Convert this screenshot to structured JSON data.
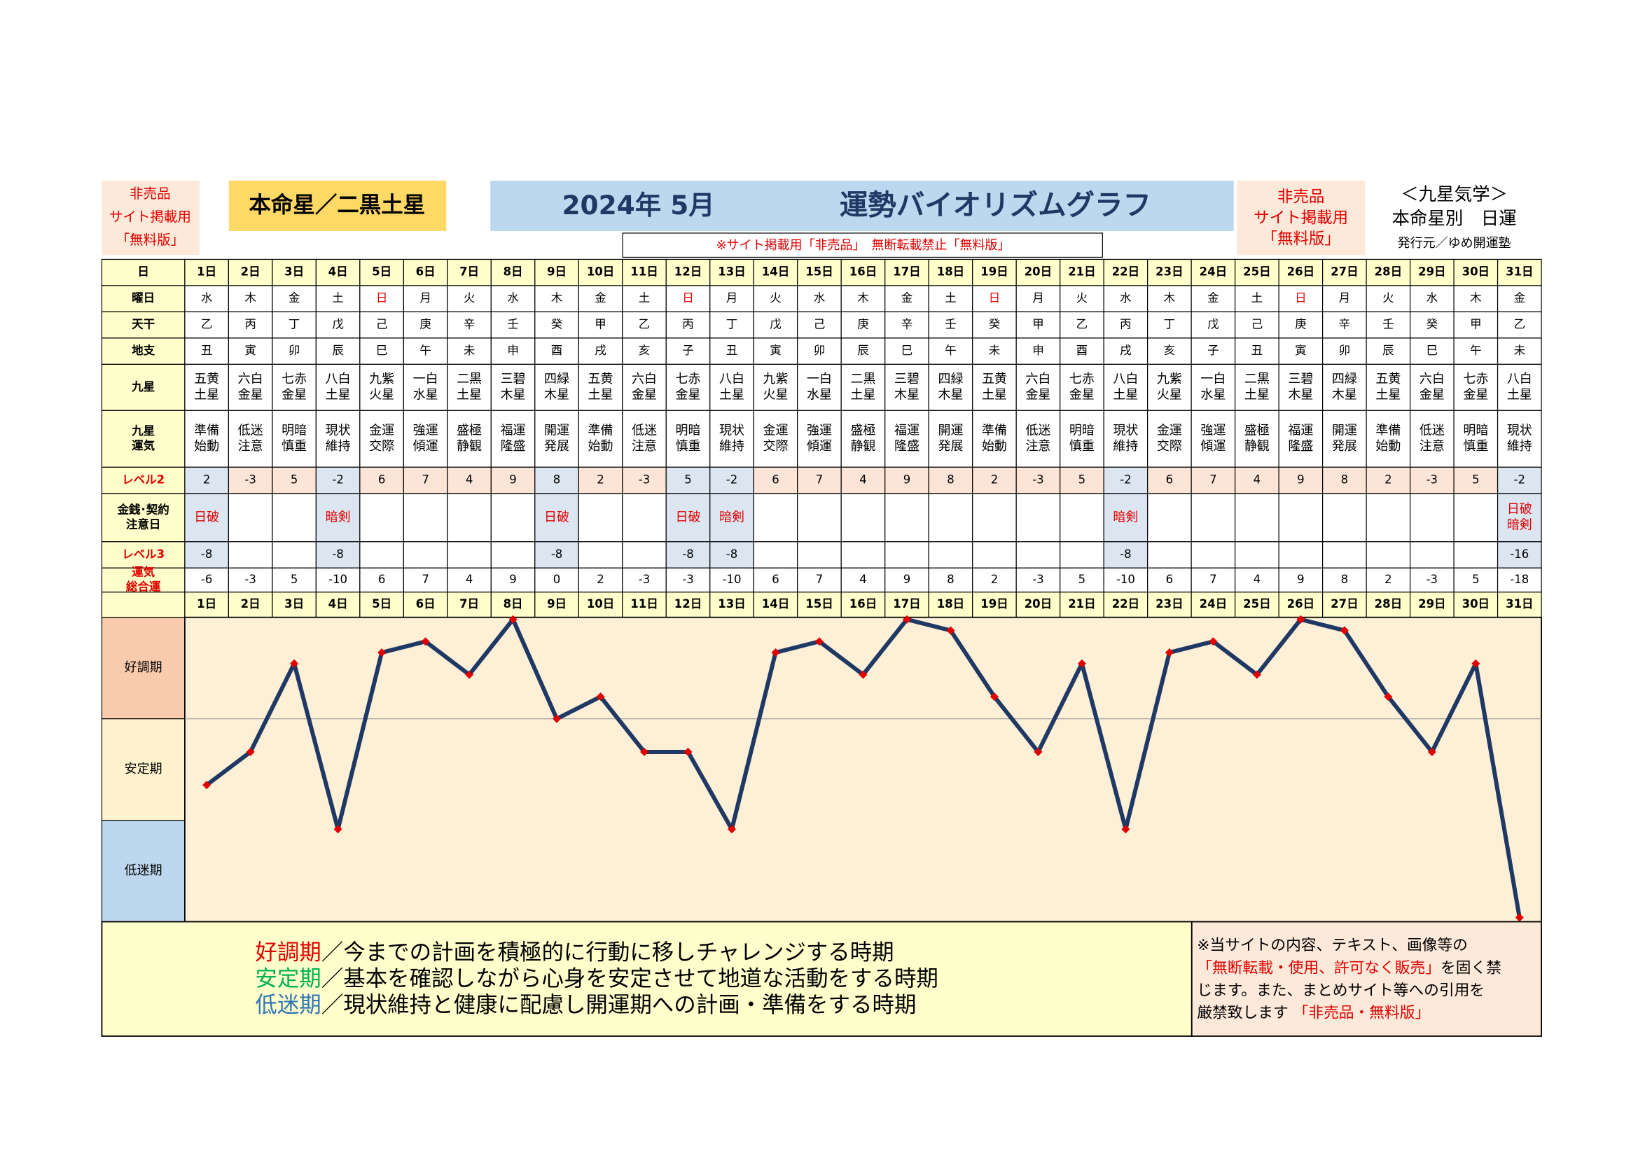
{
  "header": {
    "left_notice": [
      "非売品",
      "サイト掲載用",
      "「無料版」"
    ],
    "honmei": "本命星／二黒土星",
    "title_date": "2024年 5月",
    "title": "運勢バイオリズムグラフ",
    "right_notice": [
      "非売品",
      "サイト掲載用",
      "「無料版」"
    ],
    "brand": [
      "＜九星気学＞",
      "本命星別　日運",
      "発行元／ゆめ開運塾"
    ],
    "strip_notice": "※サイト掲載用「非売品」　無断転載禁止「無料版」"
  },
  "table": {
    "days_label": "日",
    "days": [
      "1日",
      "2日",
      "3日",
      "4日",
      "5日",
      "6日",
      "7日",
      "8日",
      "9日",
      "10日",
      "11日",
      "12日",
      "13日",
      "14日",
      "15日",
      "16日",
      "17日",
      "18日",
      "19日",
      "20日",
      "21日",
      "22日",
      "23日",
      "24日",
      "25日",
      "26日",
      "27日",
      "28日",
      "29日",
      "30日",
      "31日"
    ],
    "rows": [
      {
        "label": [
          "曜日"
        ],
        "cells": [
          "水",
          "木",
          "金",
          "土",
          "日",
          "月",
          "火",
          "水",
          "木",
          "金",
          "土",
          "日",
          "月",
          "火",
          "水",
          "木",
          "金",
          "土",
          "日",
          "月",
          "火",
          "水",
          "木",
          "金",
          "土",
          "日",
          "月",
          "火",
          "水",
          "木",
          "金"
        ]
      },
      {
        "label": [
          "天干"
        ],
        "cells": [
          "乙",
          "丙",
          "丁",
          "戊",
          "己",
          "庚",
          "辛",
          "壬",
          "癸",
          "甲",
          "乙",
          "丙",
          "丁",
          "戊",
          "己",
          "庚",
          "辛",
          "壬",
          "癸",
          "甲",
          "乙",
          "丙",
          "丁",
          "戊",
          "己",
          "庚",
          "辛",
          "壬",
          "癸",
          "甲",
          "乙"
        ]
      },
      {
        "label": [
          "地支"
        ],
        "cells": [
          "丑",
          "寅",
          "卯",
          "辰",
          "巳",
          "午",
          "未",
          "申",
          "酉",
          "戌",
          "亥",
          "子",
          "丑",
          "寅",
          "卯",
          "辰",
          "巳",
          "午",
          "未",
          "申",
          "酉",
          "戌",
          "亥",
          "子",
          "丑",
          "寅",
          "卯",
          "辰",
          "巳",
          "午",
          "未"
        ]
      },
      {
        "label": [
          "九星"
        ],
        "cells": [
          [
            "五黄",
            "土星"
          ],
          [
            "六白",
            "金星"
          ],
          [
            "七赤",
            "金星"
          ],
          [
            "八白",
            "土星"
          ],
          [
            "九紫",
            "火星"
          ],
          [
            "一白",
            "水星"
          ],
          [
            "二黒",
            "土星"
          ],
          [
            "三碧",
            "木星"
          ],
          [
            "四緑",
            "木星"
          ],
          [
            "五黄",
            "土星"
          ],
          [
            "六白",
            "金星"
          ],
          [
            "七赤",
            "金星"
          ],
          [
            "八白",
            "土星"
          ],
          [
            "九紫",
            "火星"
          ],
          [
            "一白",
            "水星"
          ],
          [
            "二黒",
            "土星"
          ],
          [
            "三碧",
            "木星"
          ],
          [
            "四緑",
            "木星"
          ],
          [
            "五黄",
            "土星"
          ],
          [
            "六白",
            "金星"
          ],
          [
            "七赤",
            "金星"
          ],
          [
            "八白",
            "土星"
          ],
          [
            "九紫",
            "火星"
          ],
          [
            "一白",
            "水星"
          ],
          [
            "二黒",
            "土星"
          ],
          [
            "三碧",
            "木星"
          ],
          [
            "四緑",
            "木星"
          ],
          [
            "五黄",
            "土星"
          ],
          [
            "六白",
            "金星"
          ],
          [
            "七赤",
            "金星"
          ],
          [
            "八白",
            "土星"
          ]
        ]
      },
      {
        "label": [
          "九星",
          "運気"
        ],
        "cells": [
          [
            "準備",
            "始動"
          ],
          [
            "低迷",
            "注意"
          ],
          [
            "明暗",
            "慎重"
          ],
          [
            "現状",
            "維持"
          ],
          [
            "金運",
            "交際"
          ],
          [
            "強運",
            "傾運"
          ],
          [
            "盛極",
            "静観"
          ],
          [
            "福運",
            "隆盛"
          ],
          [
            "開運",
            "発展"
          ],
          [
            "準備",
            "始動"
          ],
          [
            "低迷",
            "注意"
          ],
          [
            "明暗",
            "慎重"
          ],
          [
            "現状",
            "維持"
          ],
          [
            "金運",
            "交際"
          ],
          [
            "強運",
            "傾運"
          ],
          [
            "盛極",
            "静観"
          ],
          [
            "福運",
            "隆盛"
          ],
          [
            "開運",
            "発展"
          ],
          [
            "準備",
            "始動"
          ],
          [
            "低迷",
            "注意"
          ],
          [
            "明暗",
            "慎重"
          ],
          [
            "現状",
            "維持"
          ],
          [
            "金運",
            "交際"
          ],
          [
            "強運",
            "傾運"
          ],
          [
            "盛極",
            "静観"
          ],
          [
            "福運",
            "隆盛"
          ],
          [
            "開運",
            "発展"
          ],
          [
            "準備",
            "始動"
          ],
          [
            "低迷",
            "注意"
          ],
          [
            "明暗",
            "慎重"
          ],
          [
            "現状",
            "維持"
          ]
        ]
      },
      {
        "label": [
          "レベル2"
        ],
        "label_color": "#e00000",
        "bg": "#fce4d6",
        "cells": [
          2,
          -3,
          5,
          -2,
          6,
          7,
          4,
          9,
          8,
          2,
          -3,
          5,
          -2,
          6,
          7,
          4,
          9,
          8,
          2,
          -3,
          5,
          -2,
          6,
          7,
          4,
          9,
          8,
          2,
          -3,
          5,
          -2
        ]
      },
      {
        "label": [
          "金銭･契約",
          "注意日"
        ],
        "text_color": "#e00000",
        "cells": [
          [
            "日破"
          ],
          null,
          null,
          [
            "暗剣"
          ],
          null,
          null,
          null,
          null,
          [
            "日破"
          ],
          null,
          null,
          [
            "日破"
          ],
          [
            "暗剣"
          ],
          null,
          null,
          null,
          null,
          null,
          null,
          null,
          null,
          [
            "暗剣"
          ],
          null,
          null,
          null,
          null,
          null,
          null,
          null,
          null,
          [
            "日破",
            "暗剣"
          ]
        ]
      },
      {
        "label": [
          "レベル3"
        ],
        "label_color": "#e00000",
        "cells": [
          -8,
          null,
          null,
          -8,
          null,
          null,
          null,
          null,
          -8,
          null,
          null,
          -8,
          -8,
          null,
          null,
          null,
          null,
          null,
          null,
          null,
          null,
          -8,
          null,
          null,
          null,
          null,
          null,
          null,
          null,
          null,
          -16
        ]
      },
      {
        "label": [
          "運気",
          "総合運"
        ],
        "label_color": "#e00000",
        "cells": [
          -6,
          -3,
          5,
          -10,
          6,
          7,
          4,
          9,
          0,
          2,
          -3,
          -3,
          -10,
          6,
          7,
          4,
          9,
          8,
          2,
          -3,
          5,
          -10,
          6,
          7,
          4,
          9,
          8,
          2,
          -3,
          5,
          -18
        ]
      }
    ]
  },
  "graph": {
    "ylim": [
      -18,
      9
    ],
    "line_color": "#1f3864",
    "marker_color": "#e00000",
    "bands": [
      {
        "label": "好調期",
        "color": "#f8cbad"
      },
      {
        "label": "安定期",
        "color": "#fff2cc"
      },
      {
        "label": "低迷期",
        "color": "#bdd7ee"
      }
    ]
  },
  "footer": {
    "phases": [
      {
        "term": "好調期",
        "color": "#e00000",
        "text": "／今までの計画を積極的に行動に移しチャレンジする時期"
      },
      {
        "term": "安定期",
        "color": "#00b050",
        "text": "／基本を確認しながら心身を安定させて地道な活動をする時期"
      },
      {
        "term": "低迷期",
        "color": "#2e75b6",
        "text": "／現状維持と健康に配慮し開運期への計画・準備をする時期"
      }
    ],
    "notice": [
      [
        {
          "text": "※当サイトの内容、テキスト、画像等の",
          "color": "#000000"
        }
      ],
      [
        {
          "text": "「無断転載・使用、許可なく販売」",
          "color": "#e00000"
        },
        {
          "text": "を固く禁",
          "color": "#000000"
        }
      ],
      [
        {
          "text": "じます。また、まとめサイト等への引用を",
          "color": "#000000"
        }
      ],
      [
        {
          "text": "厳禁致します ",
          "color": "#000000"
        },
        {
          "text": "「非売品・無料版」",
          "color": "#e00000"
        }
      ]
    ]
  }
}
